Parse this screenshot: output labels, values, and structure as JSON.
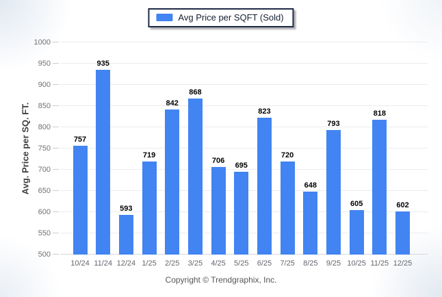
{
  "legend": {
    "label": "Avg Price per SQFT (Sold)"
  },
  "y_axis": {
    "title": "Avg. Price per SQ. FT."
  },
  "footer": {
    "copyright": "Copyright © Trendgraphix, Inc."
  },
  "chart_data": {
    "type": "bar",
    "title": "",
    "categories": [
      "10/24",
      "11/24",
      "12/24",
      "1/25",
      "2/25",
      "3/25",
      "4/25",
      "5/25",
      "6/25",
      "7/25",
      "8/25",
      "9/25",
      "10/25",
      "11/25",
      "12/25"
    ],
    "values": [
      757,
      935,
      593,
      719,
      842,
      868,
      706,
      695,
      823,
      720,
      648,
      793,
      605,
      818,
      602
    ],
    "series_name": "Avg Price per SQFT (Sold)",
    "xlabel": "",
    "ylabel": "Avg. Price per SQ. FT.",
    "ylim": [
      500,
      1000
    ],
    "ytick_step": 50,
    "grid": "horizontal",
    "legend_position": "top-center",
    "value_labels": true,
    "bar_color": "#4284f2"
  }
}
